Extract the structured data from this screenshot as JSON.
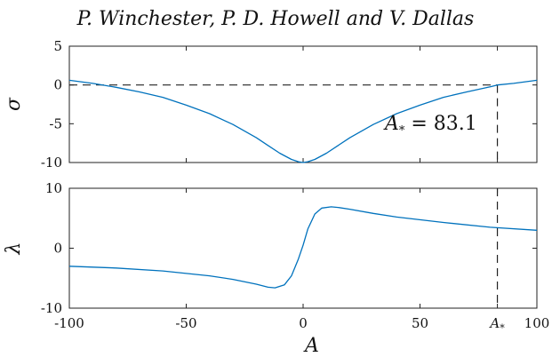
{
  "header": "P. Winchester, P. D. Howell and V. Dallas",
  "chart_data": [
    {
      "type": "line",
      "panel": "top",
      "ylabel": "σ",
      "xlim": [
        -100,
        100
      ],
      "ylim": [
        -10,
        5
      ],
      "yticks": [
        "5",
        "0",
        "-5",
        "-10"
      ],
      "ytick_values": [
        5,
        0,
        -5,
        -10
      ],
      "series": [
        {
          "x": [
            -100,
            -90,
            -80,
            -70,
            -60,
            -50,
            -40,
            -30,
            -20,
            -15,
            -10,
            -5,
            -2,
            0,
            2,
            5,
            10,
            15,
            20,
            30,
            40,
            50,
            60,
            70,
            80,
            83.1,
            90,
            100
          ],
          "y": [
            0.6,
            0.2,
            -0.3,
            -0.9,
            -1.6,
            -2.6,
            -3.7,
            -5.1,
            -6.8,
            -7.8,
            -8.8,
            -9.6,
            -9.9,
            -10,
            -9.9,
            -9.6,
            -8.8,
            -7.8,
            -6.8,
            -5.1,
            -3.7,
            -2.6,
            -1.6,
            -0.9,
            -0.25,
            0.0,
            0.2,
            0.6
          ]
        }
      ],
      "reference_line_y": 0,
      "vline_x": 83.1,
      "annotation": "A* = 83.1",
      "annotation_text": "A_* = 83.1"
    },
    {
      "type": "line",
      "panel": "bottom",
      "ylabel": "λ",
      "xlabel": "A",
      "xlim": [
        -100,
        100
      ],
      "ylim": [
        -10,
        10
      ],
      "yticks": [
        "10",
        "0",
        "-10"
      ],
      "ytick_values": [
        10,
        0,
        -10
      ],
      "xticks": [
        "-100",
        "-50",
        "0",
        "50",
        "A*",
        "100"
      ],
      "xtick_values": [
        -100,
        -50,
        0,
        50,
        83.1,
        100
      ],
      "series": [
        {
          "x": [
            -100,
            -80,
            -60,
            -40,
            -30,
            -20,
            -15,
            -12,
            -8,
            -5,
            -2,
            0,
            2,
            5,
            8,
            12,
            15,
            20,
            30,
            40,
            60,
            80,
            100
          ],
          "y": [
            -3.0,
            -3.3,
            -3.8,
            -4.6,
            -5.2,
            -6.0,
            -6.5,
            -6.6,
            -6.1,
            -4.6,
            -1.8,
            0.5,
            3.2,
            5.7,
            6.7,
            6.9,
            6.8,
            6.5,
            5.8,
            5.2,
            4.3,
            3.5,
            3.0
          ]
        }
      ],
      "vline_x": 83.1
    }
  ]
}
